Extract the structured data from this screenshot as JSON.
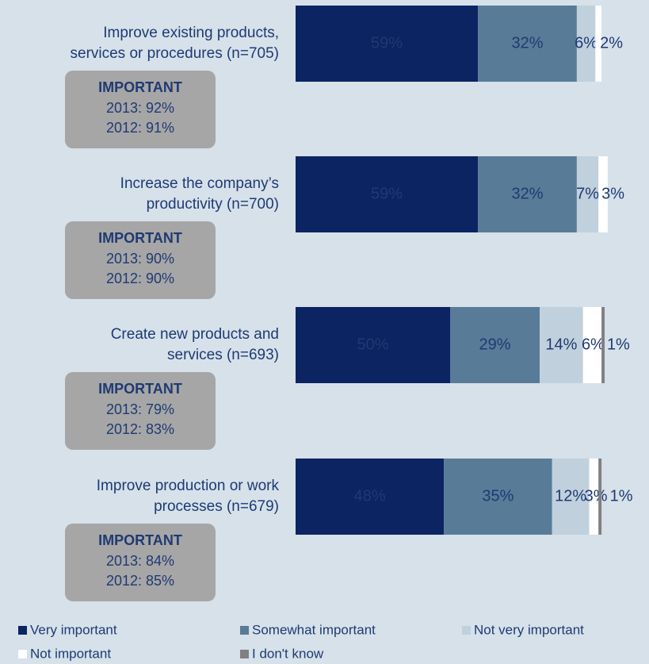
{
  "chart_data": {
    "type": "stacked-bar-horizontal",
    "categories": [
      [
        "Improve existing products,",
        "services or procedures (n=705)"
      ],
      [
        "Increase the company’s",
        "productivity (n=700)"
      ],
      [
        "Create new products and",
        "services (n=693)"
      ],
      [
        "Improve production or work",
        "processes (n=679)"
      ]
    ],
    "boxes": [
      {
        "title": "IMPORTANT",
        "lines": [
          "2013: 92%",
          "2012: 91%"
        ]
      },
      {
        "title": "IMPORTANT",
        "lines": [
          "2013: 90%",
          "2012: 90%"
        ]
      },
      {
        "title": "IMPORTANT",
        "lines": [
          "2013: 79%",
          "2012: 83%"
        ]
      },
      {
        "title": "IMPORTANT",
        "lines": [
          "2013: 84%",
          "2012: 85%"
        ]
      }
    ],
    "series": [
      {
        "name": "Very important",
        "color": "#0c2461",
        "values": [
          59,
          59,
          50,
          48
        ],
        "value_labels": [
          "59%",
          "59%",
          "50%",
          "48%"
        ]
      },
      {
        "name": "Somewhat important",
        "color": "#587b97",
        "values": [
          32,
          32,
          29,
          35
        ],
        "value_labels": [
          "32%",
          "32%",
          "29%",
          "35%"
        ]
      },
      {
        "name": "Not very important",
        "color": "#c0d0dc",
        "values": [
          6,
          7,
          14,
          12
        ],
        "value_labels": [
          "6%",
          "7%",
          "14%",
          "12%"
        ]
      },
      {
        "name": "Not important",
        "color": "#ffffff",
        "values": [
          2,
          3,
          6,
          3
        ],
        "value_labels": [
          "2%",
          "3%",
          "6%",
          "3%"
        ]
      },
      {
        "name": "I don't know",
        "color": "#808080",
        "values": [
          null,
          null,
          1,
          1
        ],
        "value_labels": [
          null,
          null,
          "1%",
          "1%"
        ]
      }
    ],
    "legend": "bottom"
  }
}
